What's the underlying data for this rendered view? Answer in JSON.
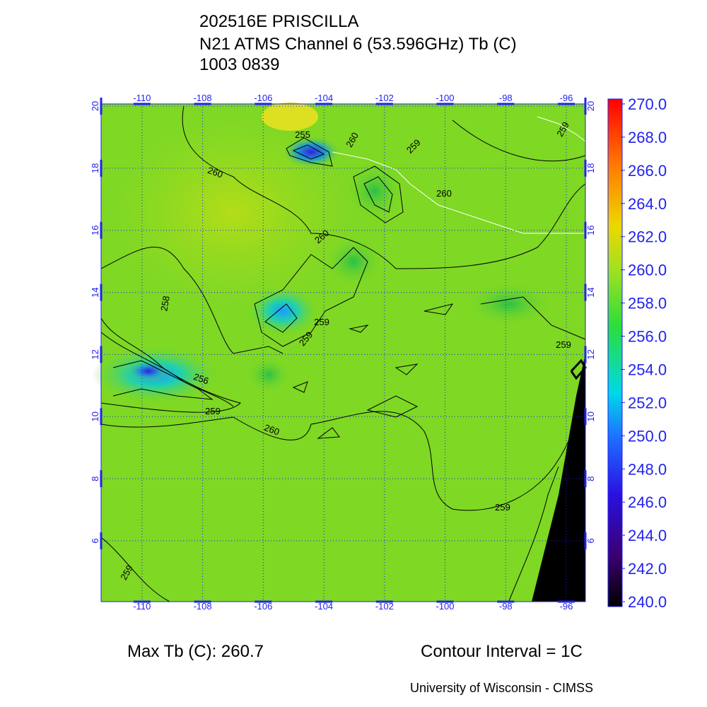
{
  "header": {
    "lines": [
      "202516E PRISCILLA",
      "N21 ATMS Channel 6 (53.596GHz) Tb (C)",
      "1003 0839"
    ]
  },
  "map": {
    "lon_range": [
      -111.35,
      -95.37
    ],
    "lat_range": [
      4.04,
      20.07
    ],
    "lon_ticks": [
      -110,
      -108,
      -106,
      -104,
      -102,
      -100,
      -98,
      -96
    ],
    "lat_ticks": [
      20,
      18,
      16,
      14,
      12,
      10,
      8,
      6
    ],
    "contour_labels": [
      259,
      255,
      260,
      259,
      260,
      260,
      260,
      259,
      258,
      259,
      259,
      256,
      259,
      260,
      259,
      259
    ]
  },
  "colorbar": {
    "range": [
      240,
      270
    ],
    "ticks": [
      {
        "value": 270,
        "label": "270.0"
      },
      {
        "value": 268,
        "label": "268.0"
      },
      {
        "value": 266,
        "label": "266.0"
      },
      {
        "value": 264,
        "label": "264.0"
      },
      {
        "value": 262,
        "label": "262.0"
      },
      {
        "value": 260,
        "label": "260.0"
      },
      {
        "value": 258,
        "label": "258.0"
      },
      {
        "value": 256,
        "label": "256.0"
      },
      {
        "value": 254,
        "label": "254.0"
      },
      {
        "value": 252,
        "label": "252.0"
      },
      {
        "value": 250,
        "label": "250.0"
      },
      {
        "value": 248,
        "label": "248.0"
      },
      {
        "value": 246,
        "label": "246.0"
      },
      {
        "value": 244,
        "label": "244.0"
      },
      {
        "value": 242,
        "label": "242.0"
      },
      {
        "value": 240,
        "label": "240.0"
      }
    ]
  },
  "footer": {
    "max_tb": "Max Tb (C): 260.7",
    "contour_interval": "Contour Interval = 1C",
    "credit": "University of Wisconsin - CIMSS"
  }
}
